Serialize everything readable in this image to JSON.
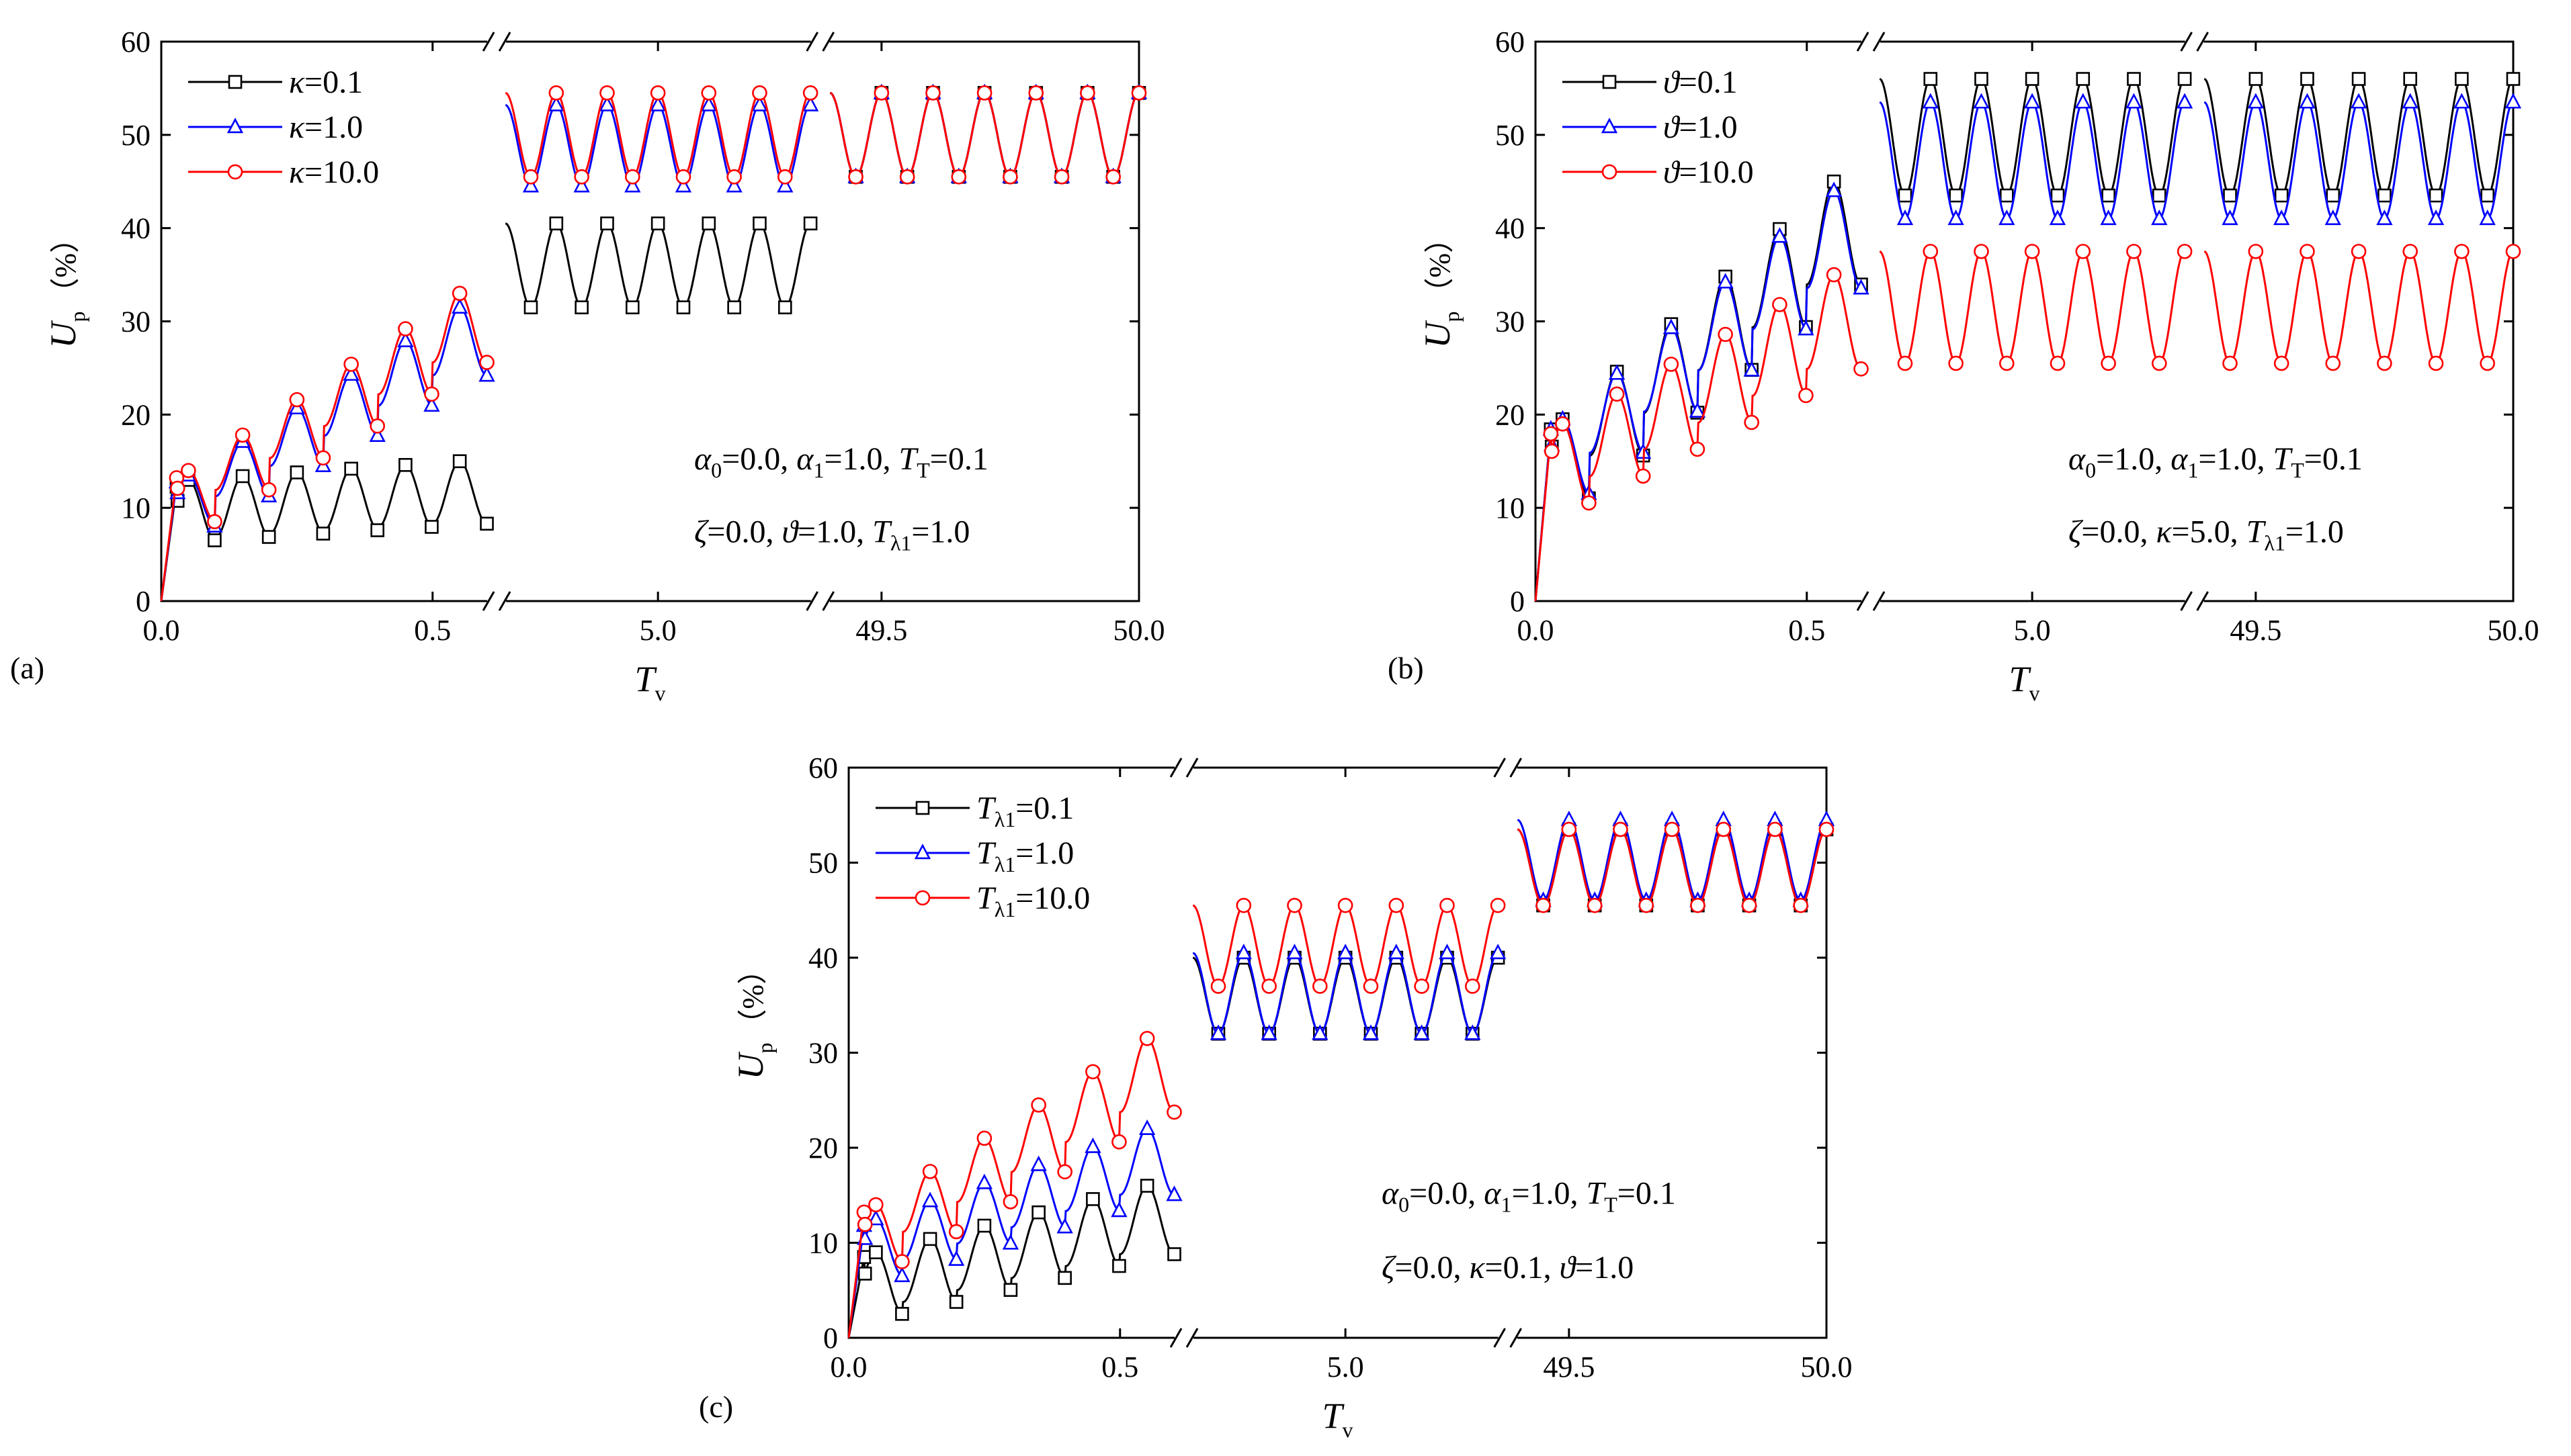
{
  "figure": {
    "description_labels": [
      "(a)",
      "(b)",
      "(c)"
    ]
  },
  "chart_data": [
    {
      "id": "a",
      "panel_label": "(a)",
      "type": "line",
      "title": "",
      "xlabel_main": "T",
      "xlabel_sub": "v",
      "ylabel_main": "U",
      "ylabel_sub": "p",
      "ylabel_unit": "（%）",
      "ylim": [
        0,
        60
      ],
      "yticks": [
        "0",
        "10",
        "20",
        "30",
        "40",
        "50",
        "60"
      ],
      "xticks": [
        "0.0",
        "0.5",
        "5.0",
        "49.5",
        "50.0"
      ],
      "segments": [
        {
          "range": [
            0.0,
            0.6
          ],
          "ticks": [
            0.0,
            0.5
          ]
        },
        {
          "range": [
            4.6,
            5.4
          ],
          "ticks": [
            5.0
          ]
        },
        {
          "range": [
            49.4,
            50.0
          ],
          "ticks": [
            49.5,
            50.0
          ]
        }
      ],
      "annotation_lines": [
        "α0=0.0, α1=1.0, TT=0.1",
        "ζ=0.0, ϑ=1.0, Tλ1=1.0"
      ],
      "series": [
        {
          "name": "κ=0.1",
          "color": "#000000",
          "marker": "square",
          "seg_params": [
            [
              0,
              6.5,
              13,
              15,
              1.6
            ],
            [
              31.5,
              40.5
            ],
            [
              45.5,
              54.5
            ]
          ]
        },
        {
          "name": "κ=1.0",
          "color": "#0000ff",
          "marker": "triangle",
          "seg_params": [
            [
              0,
              8,
              13.5,
              31.5,
              3.3
            ],
            [
              44.5,
              53.2
            ],
            [
              45.5,
              54.5
            ]
          ]
        },
        {
          "name": "κ=10.0",
          "color": "#ff0000",
          "marker": "circle",
          "seg_params": [
            [
              0,
              8.5,
              14,
              33,
              3.5
            ],
            [
              45.5,
              54.5
            ],
            [
              45.5,
              54.5
            ]
          ]
        }
      ]
    },
    {
      "id": "b",
      "panel_label": "(b)",
      "type": "line",
      "title": "",
      "xlabel_main": "T",
      "xlabel_sub": "v",
      "ylabel_main": "U",
      "ylabel_sub": "p",
      "ylabel_unit": "（%）",
      "ylim": [
        0,
        60
      ],
      "yticks": [
        "0",
        "10",
        "20",
        "30",
        "40",
        "50",
        "60"
      ],
      "xticks": [
        "0.0",
        "0.5",
        "5.0",
        "49.5",
        "50.0"
      ],
      "segments": [
        {
          "range": [
            0.0,
            0.6
          ],
          "ticks": [
            0.0,
            0.5
          ]
        },
        {
          "range": [
            4.6,
            5.4
          ],
          "ticks": [
            5.0
          ]
        },
        {
          "range": [
            49.4,
            50.0
          ],
          "ticks": [
            49.5,
            50.0
          ]
        }
      ],
      "annotation_lines": [
        "α0=1.0, α1=1.0, TT=0.1",
        "ζ=0.0, κ=5.0, Tλ1=1.0"
      ],
      "series": [
        {
          "name": "ϑ=0.1",
          "color": "#000000",
          "marker": "square",
          "seg_params": [
            [
              0,
              11,
              19.5,
              45,
              4.0
            ],
            [
              43.5,
              56
            ],
            [
              43.5,
              56
            ]
          ]
        },
        {
          "name": "ϑ=1.0",
          "color": "#0000ff",
          "marker": "triangle",
          "seg_params": [
            [
              0,
              11.5,
              19.5,
              44,
              3.8
            ],
            [
              41,
              53.5
            ],
            [
              41,
              53.5
            ]
          ]
        },
        {
          "name": "ϑ=10.0",
          "color": "#ff0000",
          "marker": "circle",
          "seg_params": [
            [
              0,
              10.5,
              19,
              35,
              2.6
            ],
            [
              25.5,
              37.5
            ],
            [
              25.5,
              37.5
            ]
          ]
        }
      ]
    },
    {
      "id": "c",
      "panel_label": "(c)",
      "type": "line",
      "title": "",
      "xlabel_main": "T",
      "xlabel_sub": "v",
      "ylabel_main": "U",
      "ylabel_sub": "p",
      "ylabel_unit": "（%）",
      "ylim": [
        0,
        60
      ],
      "yticks": [
        "0",
        "10",
        "20",
        "30",
        "40",
        "50",
        "60"
      ],
      "xticks": [
        "0.0",
        "0.5",
        "5.0",
        "49.5",
        "50.0"
      ],
      "segments": [
        {
          "range": [
            0.0,
            0.6
          ],
          "ticks": [
            0.0,
            0.5
          ]
        },
        {
          "range": [
            4.6,
            5.4
          ],
          "ticks": [
            5.0
          ]
        },
        {
          "range": [
            49.4,
            50.0
          ],
          "ticks": [
            49.5,
            50.0
          ]
        }
      ],
      "annotation_lines": [
        "α0=0.0, α1=1.0, TT=0.1",
        "ζ=0.0, κ=0.1, ϑ=1.0"
      ],
      "series": [
        {
          "name": "Tλ1=0.1",
          "color": "#000000",
          "marker": "square",
          "seg_params": [
            [
              0,
              2.5,
              9,
              16,
              1.5
            ],
            [
              32,
              40
            ],
            [
              45.5,
              53.5
            ]
          ]
        },
        {
          "name": "Tλ1=1.0",
          "color": "#0000ff",
          "marker": "triangle",
          "seg_params": [
            [
              0,
              6.5,
              12.5,
              22,
              2.0
            ],
            [
              32,
              40.5
            ],
            [
              46,
              54.5
            ]
          ]
        },
        {
          "name": "Tλ1=10.0",
          "color": "#ff0000",
          "marker": "circle",
          "seg_params": [
            [
              0,
              8,
              14,
              31.5,
              3.1
            ],
            [
              37,
              45.5
            ],
            [
              45.5,
              53.5
            ]
          ]
        }
      ]
    }
  ]
}
